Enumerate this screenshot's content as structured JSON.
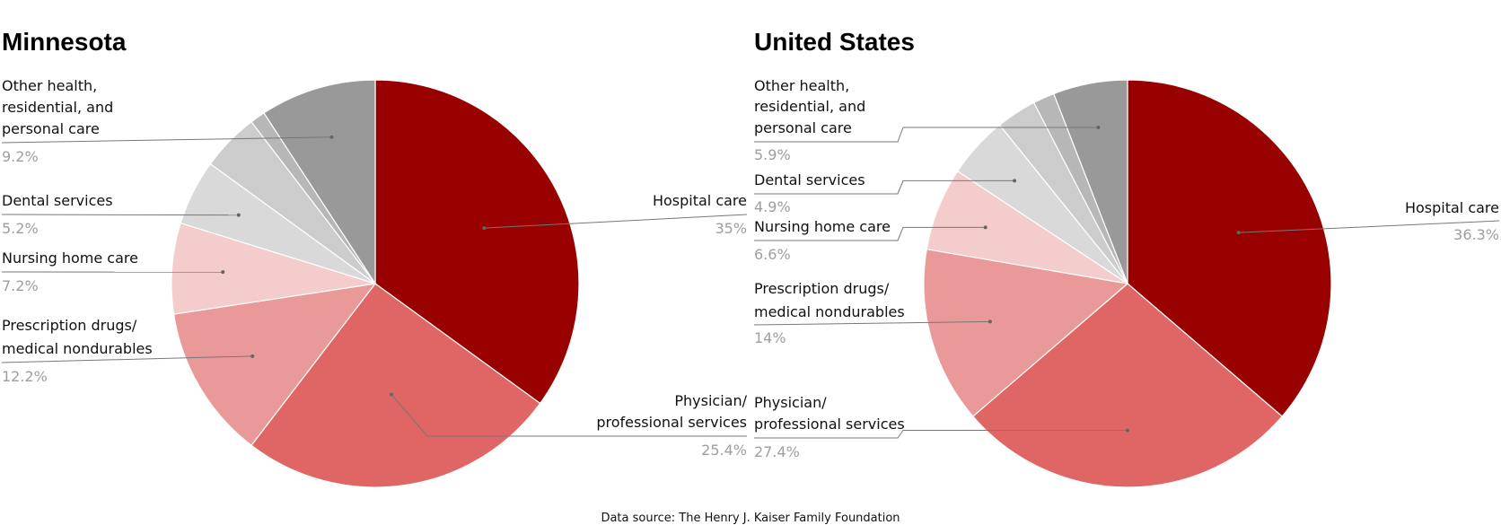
{
  "source_note": "Data source: The Henry J. Kaiser Family Foundation",
  "chart_data": [
    {
      "type": "pie",
      "title": "Minnesota",
      "slices": [
        {
          "label": "Hospital care",
          "value": 35,
          "value_label": "35%",
          "color": "#990000"
        },
        {
          "label": "Physician/ professional services",
          "value": 25.4,
          "value_label": "25.4%",
          "color": "#e06666"
        },
        {
          "label": "Prescription drugs/ medical nondurables",
          "value": 12.2,
          "value_label": "12.2%",
          "color": "#ea9999"
        },
        {
          "label": "Nursing home care",
          "value": 7.2,
          "value_label": "7.2%",
          "color": "#f4cccc"
        },
        {
          "label": "Dental services",
          "value": 5.2,
          "value_label": "5.2%",
          "color": "#d9d9d9"
        },
        {
          "label": "",
          "value": 4.6,
          "value_label": "",
          "color": "#cccccc"
        },
        {
          "label": "",
          "value": 1.2,
          "value_label": "",
          "color": "#b7b7b7"
        },
        {
          "label": "Other health, residential, and personal care",
          "value": 9.2,
          "value_label": "9.2%",
          "color": "#999999"
        }
      ]
    },
    {
      "type": "pie",
      "title": "United States",
      "slices": [
        {
          "label": "Hospital care",
          "value": 36.3,
          "value_label": "36.3%",
          "color": "#990000"
        },
        {
          "label": "Physician/ professional services",
          "value": 27.4,
          "value_label": "27.4%",
          "color": "#e06666"
        },
        {
          "label": "Prescription drugs/ medical nondurables",
          "value": 14,
          "value_label": "14%",
          "color": "#ea9999"
        },
        {
          "label": "Nursing home care",
          "value": 6.6,
          "value_label": "6.6%",
          "color": "#f4cccc"
        },
        {
          "label": "Dental services",
          "value": 4.9,
          "value_label": "4.9%",
          "color": "#d9d9d9"
        },
        {
          "label": "",
          "value": 3.2,
          "value_label": "",
          "color": "#cccccc"
        },
        {
          "label": "",
          "value": 1.7,
          "value_label": "",
          "color": "#b7b7b7"
        },
        {
          "label": "Other health, residential, and personal care",
          "value": 5.9,
          "value_label": "5.9%",
          "color": "#999999"
        }
      ]
    }
  ]
}
